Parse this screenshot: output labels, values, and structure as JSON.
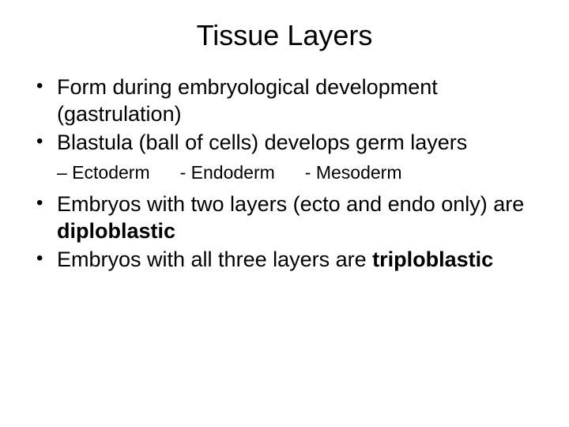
{
  "title": "Tissue Layers",
  "bullets": {
    "b1": "Form during embryological development (gastrulation)",
    "b2": "Blastula (ball of cells) develops germ layers",
    "sub1": "– Ectoderm",
    "sub2": "- Endoderm",
    "sub3": "- Mesoderm",
    "b3_pre": "Embryos with two layers (ecto and endo only) are ",
    "b3_bold": "diploblastic",
    "b4_pre": "Embryos with all three layers are ",
    "b4_bold": "triploblastic"
  },
  "style": {
    "background_color": "#ffffff",
    "text_color": "#000000",
    "title_fontsize": 36,
    "body_fontsize": 27,
    "sub_fontsize": 23,
    "font_family": "Arial"
  }
}
